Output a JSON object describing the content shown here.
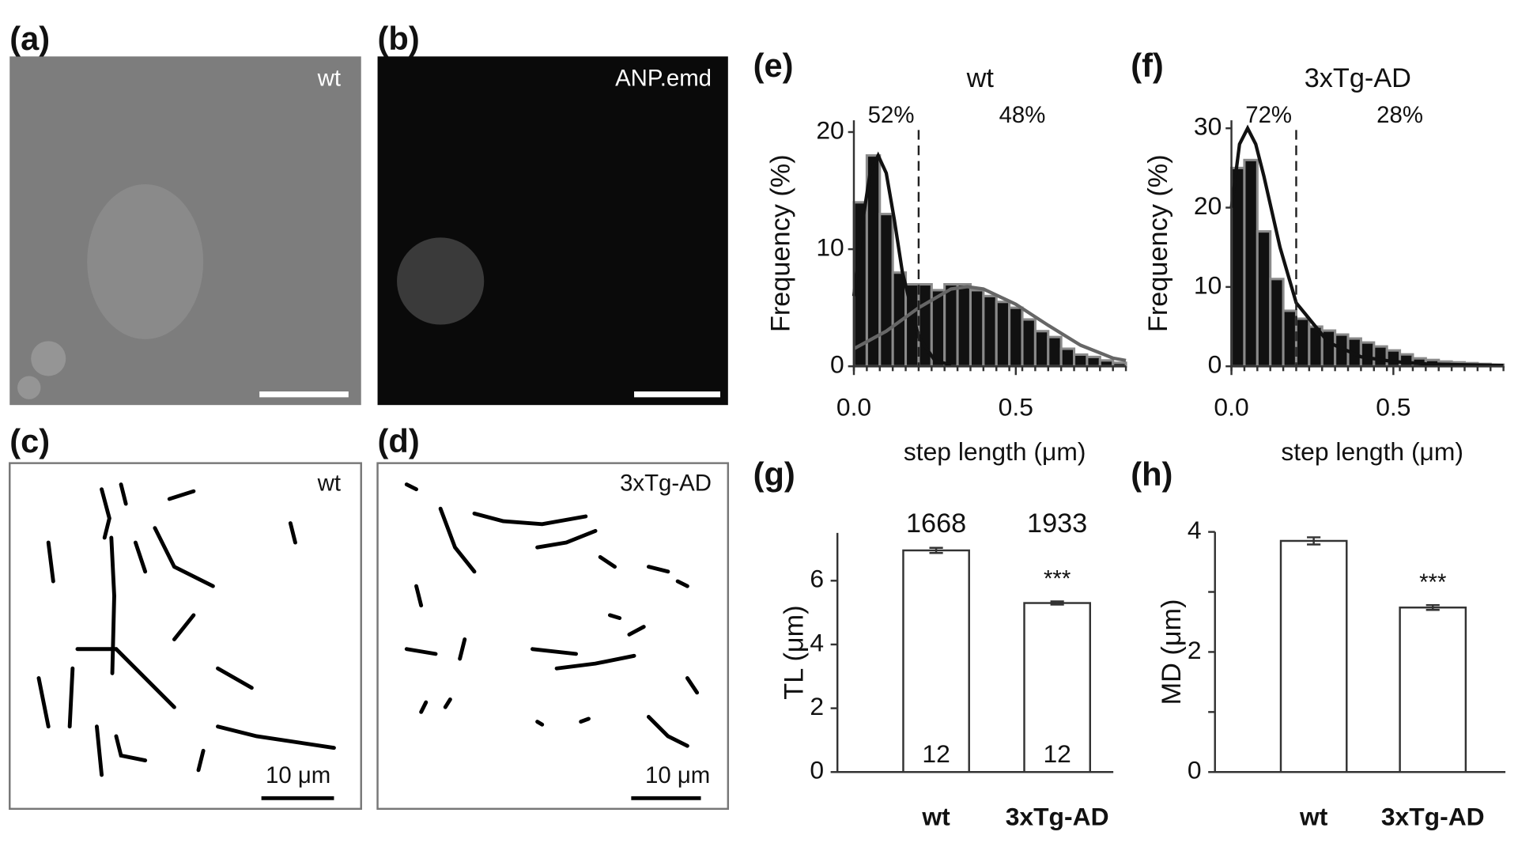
{
  "images": [
    {
      "label": "(a)",
      "caption": "wt"
    },
    {
      "label": "(b)",
      "caption": "ANP.emd"
    },
    {
      "label": "(c)",
      "caption": "wt",
      "scale_label": "10 μm"
    },
    {
      "label": "(d)",
      "caption": "3xTg-AD",
      "scale_label": "10 μm"
    }
  ],
  "chart_data": [
    {
      "type": "histogram",
      "label": "(e)",
      "title": "wt",
      "xlabel": "step length (μm)",
      "ylabel": "Frequency (%)",
      "bins": [
        0,
        0.04,
        0.08,
        0.12,
        0.16,
        0.2,
        0.24,
        0.28,
        0.32,
        0.36,
        0.4,
        0.44,
        0.48,
        0.52,
        0.56,
        0.6,
        0.64,
        0.68,
        0.72,
        0.76,
        0.8,
        0.84
      ],
      "values": [
        14,
        18,
        13,
        8,
        7,
        7,
        6.5,
        7,
        7,
        6.5,
        6,
        5.5,
        5,
        4,
        3,
        2.5,
        1.5,
        1,
        0.8,
        0.5,
        0.3
      ],
      "color": "#111111",
      "edgecolor": "#8a8a8a",
      "fits": [
        {
          "color": "#111111",
          "x": [
            0,
            0.025,
            0.05,
            0.075,
            0.1,
            0.125,
            0.15,
            0.2,
            0.25,
            0.3
          ],
          "y": [
            6,
            12,
            16.5,
            18,
            16.5,
            12.5,
            8,
            2.5,
            0.5,
            0.1
          ]
        },
        {
          "color": "#666666",
          "x": [
            0,
            0.1,
            0.2,
            0.3,
            0.35,
            0.4,
            0.5,
            0.6,
            0.7,
            0.8,
            0.84
          ],
          "y": [
            1.5,
            3,
            5,
            6.6,
            6.8,
            6.6,
            5.3,
            3.5,
            1.8,
            0.7,
            0.5
          ]
        }
      ],
      "threshold": 0.2,
      "annotations": [
        "52%",
        "48%"
      ],
      "xlim": [
        0,
        0.84
      ],
      "xticks": [
        {
          "value": 0,
          "label": "0.0"
        },
        0.5
      ],
      "ylim": [
        0,
        21
      ],
      "yticks": [
        0,
        10,
        20
      ]
    },
    {
      "type": "histogram",
      "label": "(f)",
      "title": "3xTg-AD",
      "xlabel": "step length (μm)",
      "ylabel": "Frequency (%)",
      "bins": [
        0,
        0.04,
        0.08,
        0.12,
        0.16,
        0.2,
        0.24,
        0.28,
        0.32,
        0.36,
        0.4,
        0.44,
        0.48,
        0.52,
        0.56,
        0.6,
        0.64,
        0.68,
        0.72,
        0.76,
        0.8,
        0.84
      ],
      "values": [
        25,
        26,
        17,
        11,
        7,
        6,
        5,
        4.5,
        4,
        3.5,
        3,
        2.5,
        2,
        1.5,
        1,
        0.8,
        0.6,
        0.5,
        0.4,
        0.3,
        0.2
      ],
      "color": "#111111",
      "edgecolor": "#8a8a8a",
      "fits": [
        {
          "color": "#111111",
          "x": [
            0,
            0.025,
            0.05,
            0.075,
            0.1,
            0.15,
            0.2,
            0.3,
            0.4,
            0.5,
            0.6,
            0.7,
            0.84
          ],
          "y": [
            20,
            28,
            30,
            28,
            24,
            15,
            8,
            3,
            1.2,
            0.6,
            0.3,
            0.2,
            0.1
          ]
        }
      ],
      "threshold": 0.2,
      "annotations": [
        "72%",
        "28%"
      ],
      "xlim": [
        0,
        0.84
      ],
      "xticks": [
        {
          "value": 0,
          "label": "0.0"
        },
        0.5
      ],
      "ylim": [
        0,
        31
      ],
      "yticks": [
        0,
        10,
        20,
        30
      ]
    },
    {
      "type": "bar",
      "label": "(g)",
      "ylabel": "TL (μm)",
      "categories": [
        "wt",
        "3xTg-AD"
      ],
      "values": [
        6.95,
        5.3
      ],
      "errors": [
        0.08,
        0.05
      ],
      "color": "#ffffff",
      "top_labels": [
        "1668",
        "1933"
      ],
      "n_labels": [
        "12",
        "12"
      ],
      "significance": [
        {
          "category": "3xTg-AD",
          "text": "***"
        }
      ],
      "ylim": [
        0,
        7.5
      ],
      "yticks": [
        0,
        2,
        4,
        6
      ]
    },
    {
      "type": "bar",
      "label": "(h)",
      "ylabel": "MD (μm)",
      "categories": [
        "wt",
        "3xTg-AD"
      ],
      "values": [
        3.85,
        2.74
      ],
      "errors": [
        0.06,
        0.04
      ],
      "color": "#ffffff",
      "significance": [
        {
          "category": "3xTg-AD",
          "text": "***"
        }
      ],
      "ylim": [
        0,
        4
      ],
      "yticks": [
        0,
        2,
        4
      ],
      "minor_yticks": [
        1,
        3
      ]
    }
  ]
}
